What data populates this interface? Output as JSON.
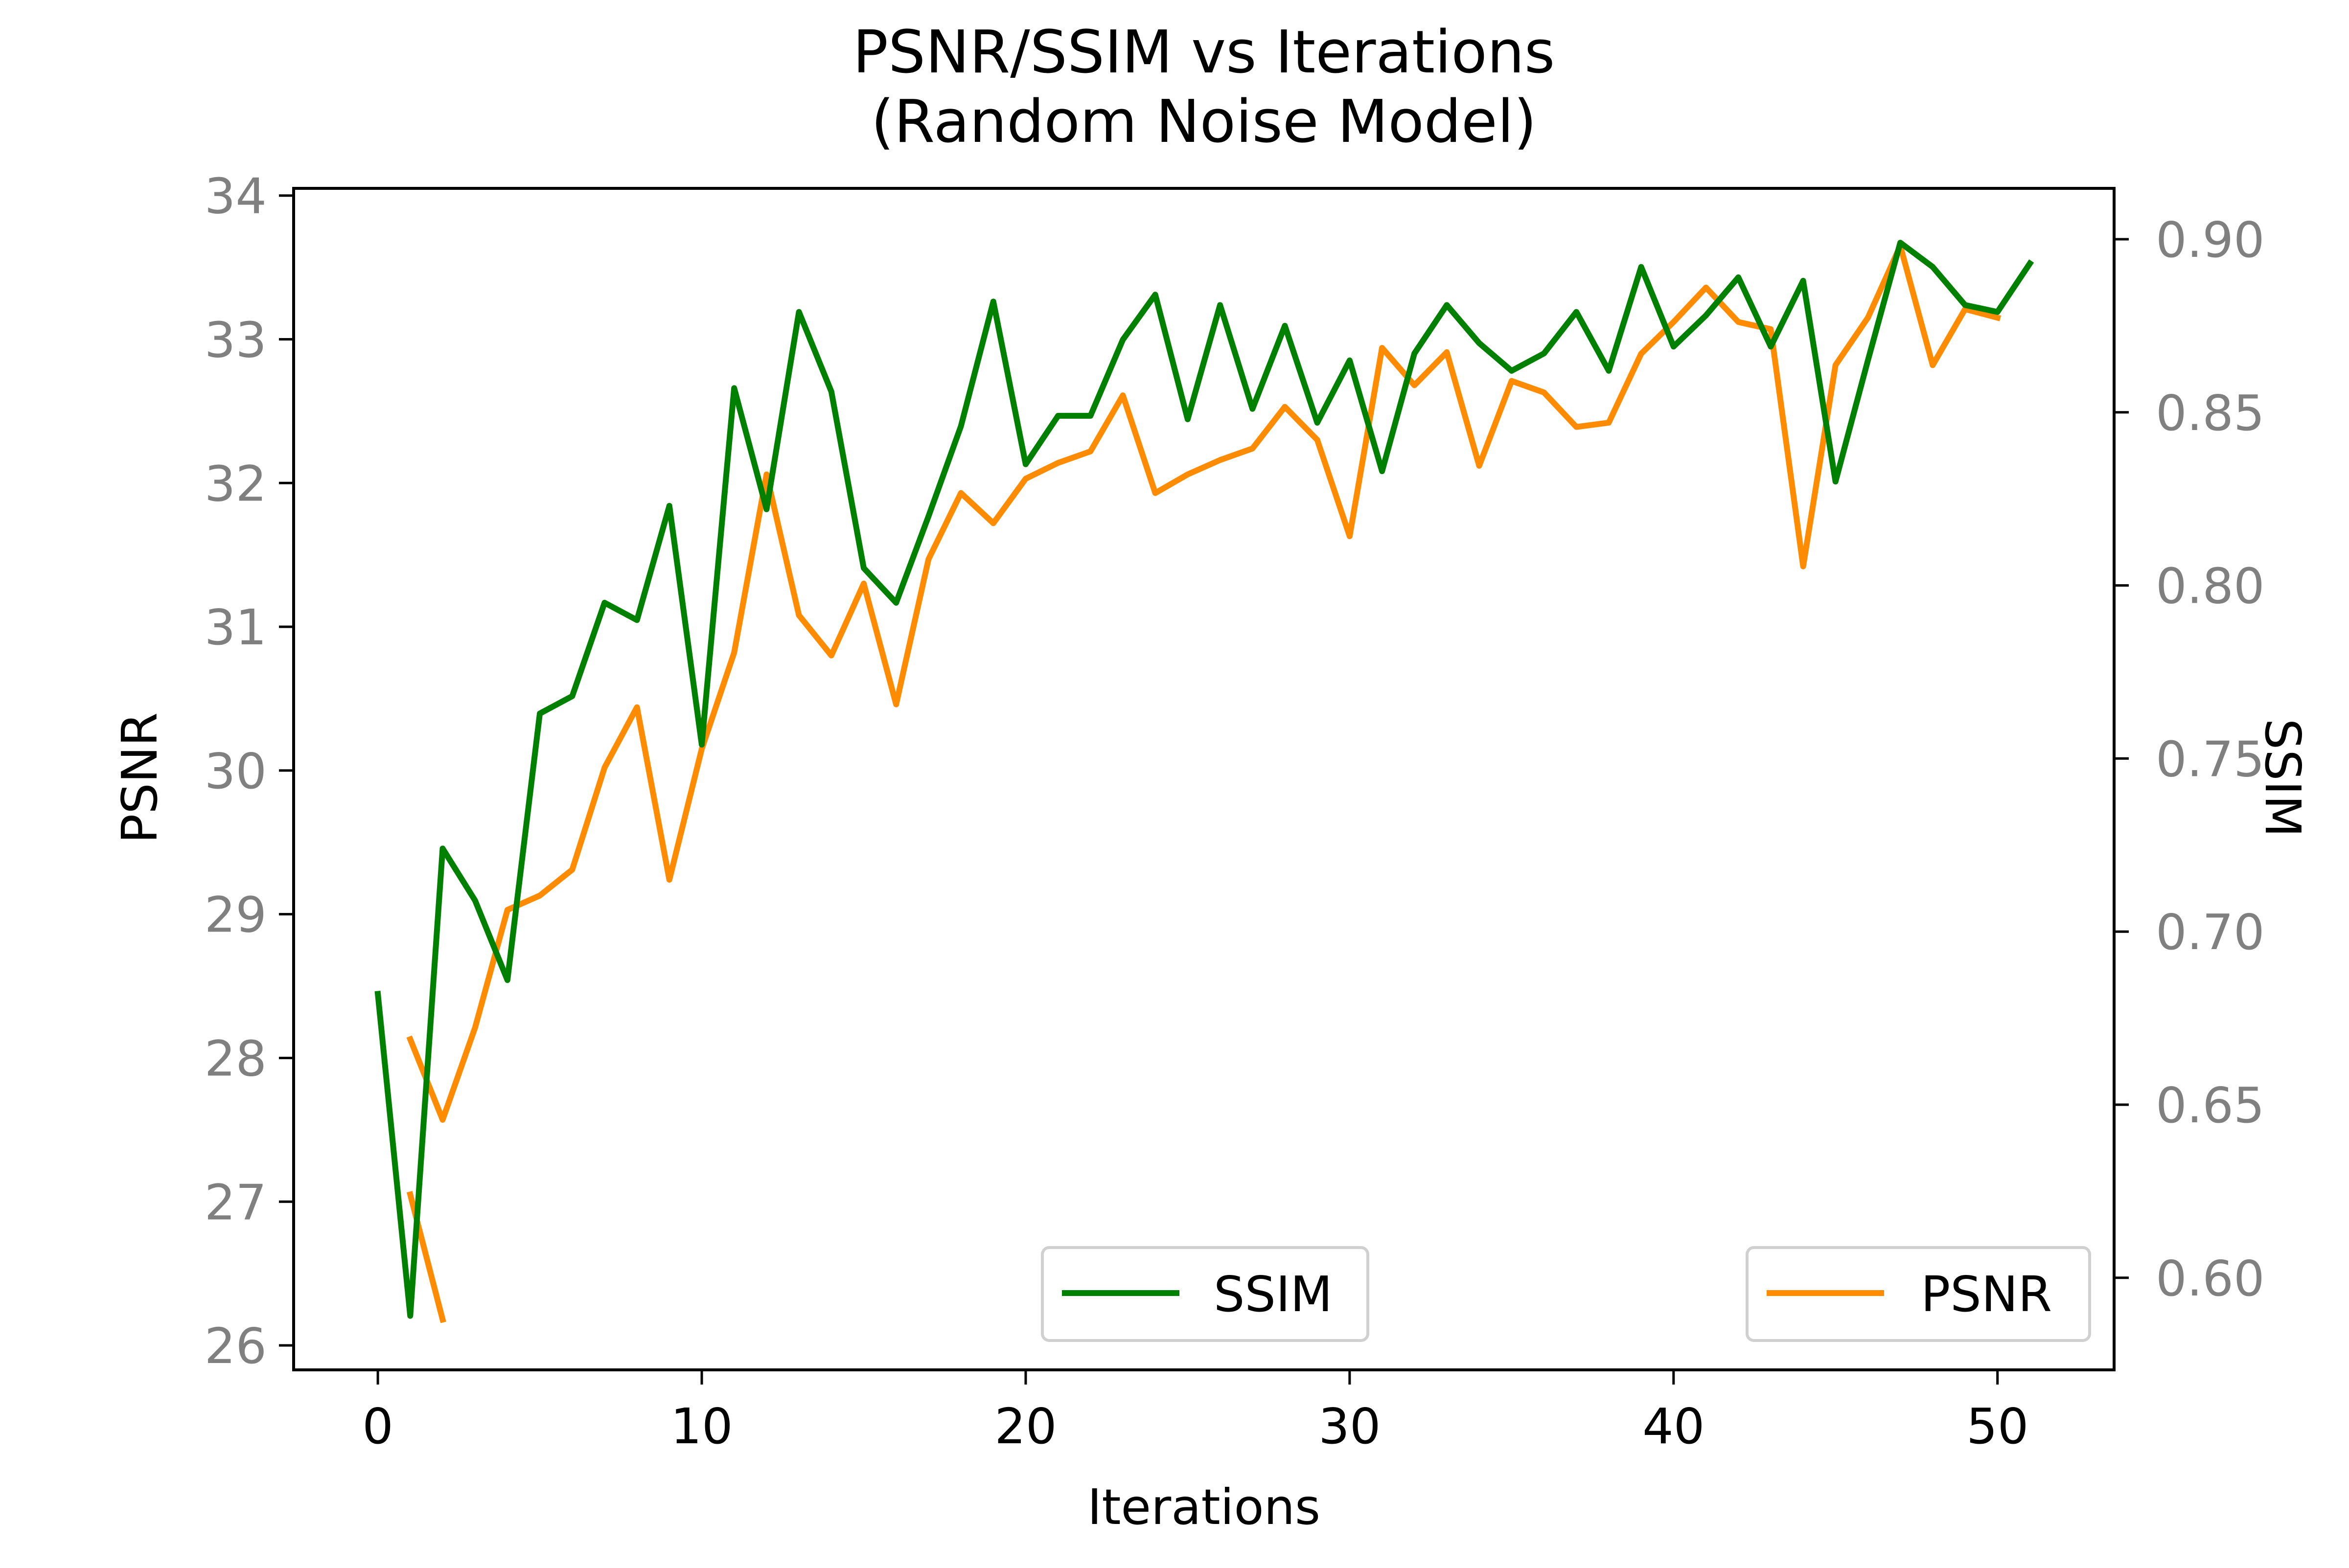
{
  "chart_data": {
    "type": "line",
    "title": "PSNR/SSIM vs Iterations",
    "subtitle": "(Random Noise Model)",
    "xlabel": "Iterations",
    "ylabel_left": "PSNR",
    "ylabel_right": "SSIM",
    "xlim": [
      -2.6,
      53.6
    ],
    "ylim_left": [
      25.83,
      34.05
    ],
    "ylim_right": [
      0.5734,
      0.9147
    ],
    "x_ticks": [
      0,
      10,
      20,
      30,
      40,
      50
    ],
    "x_tick_labels": [
      "0",
      "10",
      "20",
      "30",
      "40",
      "50"
    ],
    "y_left_ticks": [
      26,
      27,
      28,
      29,
      30,
      31,
      32,
      33,
      34
    ],
    "y_left_tick_labels": [
      "26",
      "27",
      "28",
      "29",
      "30",
      "31",
      "32",
      "33",
      "34"
    ],
    "y_right_ticks": [
      0.6,
      0.65,
      0.7,
      0.75,
      0.8,
      0.85,
      0.9
    ],
    "y_right_tick_labels": [
      "0.60",
      "0.65",
      "0.70",
      "0.75",
      "0.80",
      "0.85",
      "0.90"
    ],
    "grid": false,
    "colors": {
      "psnr": "#ff8c00",
      "ssim": "#008000",
      "axis": "#000000",
      "tick_label": "#808080"
    },
    "legend_ssim": {
      "label": "SSIM",
      "placement": "lower-center"
    },
    "legend_psnr": {
      "label": "PSNR",
      "placement": "lower-right"
    },
    "series": [
      {
        "name": "SSIM",
        "axis": "right",
        "x": [
          0,
          1,
          2,
          3,
          4,
          5,
          6,
          7,
          8,
          9,
          10,
          11,
          12,
          13,
          14,
          15,
          16,
          17,
          18,
          19,
          20,
          21,
          22,
          23,
          24,
          25,
          26,
          27,
          28,
          29,
          30,
          31,
          32,
          33,
          34,
          35,
          36,
          37,
          38,
          39,
          40,
          41,
          42,
          43,
          44,
          45,
          46,
          47,
          48,
          49,
          50,
          51
        ],
        "values": [
          0.682,
          0.589,
          0.724,
          0.709,
          0.686,
          0.763,
          0.768,
          0.795,
          0.79,
          0.823,
          0.754,
          0.857,
          0.822,
          0.879,
          0.856,
          0.805,
          0.795,
          0.82,
          0.846,
          0.882,
          0.835,
          0.849,
          0.849,
          0.871,
          0.884,
          0.848,
          0.881,
          0.851,
          0.875,
          0.847,
          0.865,
          0.833,
          0.867,
          0.881,
          0.87,
          0.862,
          0.867,
          0.879,
          0.862,
          0.892,
          0.869,
          0.878,
          0.889,
          0.869,
          0.888,
          0.83,
          0.865,
          0.899,
          0.892,
          0.881,
          0.879,
          0.893
        ]
      },
      {
        "name": "PSNR",
        "axis": "left",
        "segments": [
          {
            "x": [
              1,
              2
            ],
            "values": [
              27.05,
              26.18
            ]
          },
          {
            "x": [
              1,
              2,
              3,
              4,
              5,
              6,
              7,
              8,
              9,
              10,
              11,
              12,
              13,
              14,
              15,
              16,
              17,
              18,
              19,
              20,
              21,
              22,
              23,
              24,
              25,
              26,
              27,
              28,
              29,
              30,
              31,
              32,
              33,
              34,
              35,
              36,
              37,
              38,
              39,
              40,
              41,
              42,
              43,
              44,
              45,
              46,
              47,
              48,
              49,
              50
            ],
            "values": [
              28.13,
              27.57,
              28.21,
              29.03,
              29.13,
              29.31,
              30.02,
              30.44,
              29.24,
              30.15,
              30.82,
              32.06,
              31.08,
              30.8,
              31.3,
              30.46,
              31.47,
              31.93,
              31.72,
              32.03,
              32.14,
              32.22,
              32.61,
              31.93,
              32.06,
              32.16,
              32.24,
              32.53,
              32.3,
              31.63,
              32.94,
              32.68,
              32.91,
              32.12,
              32.71,
              32.63,
              32.39,
              32.42,
              32.9,
              33.12,
              33.36,
              33.12,
              33.07,
              31.42,
              32.82,
              33.15,
              33.65,
              32.82,
              33.21,
              33.15
            ]
          }
        ]
      }
    ]
  }
}
